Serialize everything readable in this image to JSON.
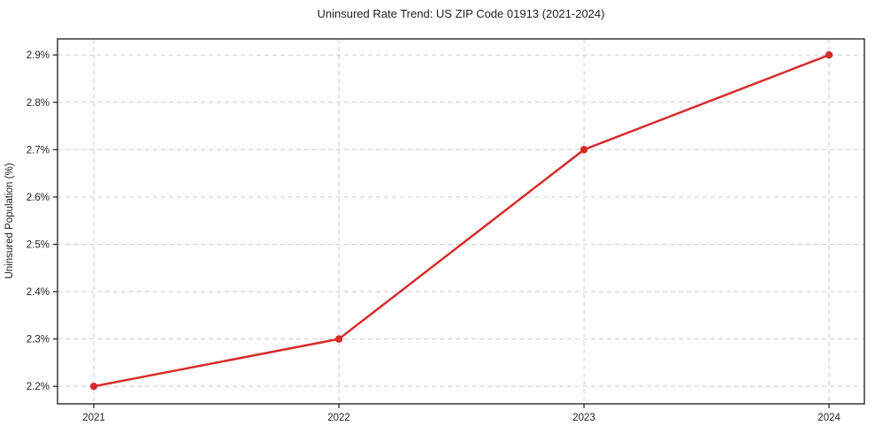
{
  "chart_data": {
    "type": "line",
    "title": "Uninsured Rate Trend: US ZIP Code 01913 (2021-2024)",
    "xlabel": "",
    "ylabel": "Uninsured Population (%)",
    "x": [
      2021,
      2022,
      2023,
      2024
    ],
    "values": [
      2.2,
      2.3,
      2.7,
      2.9
    ],
    "x_tick_labels": [
      "2021",
      "2022",
      "2023",
      "2024"
    ],
    "y_ticks": [
      2.2,
      2.3,
      2.4,
      2.5,
      2.6,
      2.7,
      2.8,
      2.9
    ],
    "y_tick_labels": [
      "2.2%",
      "2.3%",
      "2.4%",
      "2.5%",
      "2.6%",
      "2.7%",
      "2.8%",
      "2.9%"
    ],
    "xlim": [
      2020.852,
      2024.144
    ],
    "ylim": [
      2.163,
      2.934
    ],
    "grid": true,
    "legend": "none",
    "line_color": "#d62b2b",
    "marker": "circle",
    "grid_color": "#cccccc",
    "axis_color": "#1a1a1a",
    "background": "#ffffff"
  }
}
